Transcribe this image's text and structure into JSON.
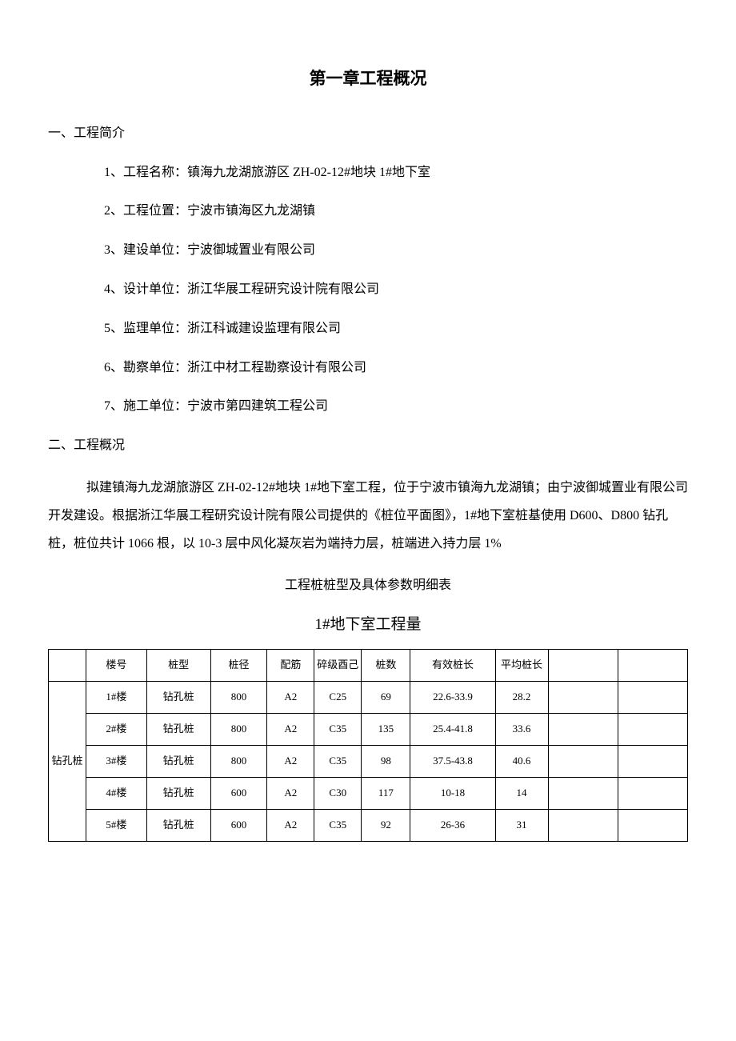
{
  "chapter_title": "第一章工程概况",
  "section1": {
    "heading": "一、工程简介",
    "items": [
      "1、工程名称：镇海九龙湖旅游区 ZH-02-12#地块 1#地下室",
      "2、工程位置：宁波市镇海区九龙湖镇",
      "3、建设单位：宁波御城置业有限公司",
      "4、设计单位：浙江华展工程研究设计院有限公司",
      "5、监理单位：浙江科诚建设监理有限公司",
      "6、勘察单位：浙江中材工程勘察设计有限公司",
      "7、施工单位：宁波市第四建筑工程公司"
    ]
  },
  "section2": {
    "heading": "二、工程概况",
    "paragraph": "拟建镇海九龙湖旅游区 ZH-02-12#地块 1#地下室工程，位于宁波市镇海九龙湖镇；由宁波御城置业有限公司开发建设。根据浙江华展工程研究设计院有限公司提供的《桩位平面图》，1#地下室桩基使用 D600、D800 钻孔桩，桩位共计 1066 根，以 10-3 层中风化凝灰岩为端持力层，桩端进入持力层 1%"
  },
  "table_caption": "工程桩桩型及具体参数明细表",
  "table_title": "1#地下室工程量",
  "table": {
    "group_label": "钻孔桩",
    "headers": [
      "楼号",
      "桩型",
      "桩径",
      "配筋",
      "碎级酉己",
      "桩数",
      "有效桩长",
      "平均桩长",
      "",
      ""
    ],
    "rows": [
      [
        "1#楼",
        "钻孔桩",
        "800",
        "A2",
        "C25",
        "69",
        "22.6-33.9",
        "28.2",
        "",
        ""
      ],
      [
        "2#楼",
        "钻孔桩",
        "800",
        "A2",
        "C35",
        "135",
        "25.4-41.8",
        "33.6",
        "",
        ""
      ],
      [
        "3#楼",
        "钻孔桩",
        "800",
        "A2",
        "C35",
        "98",
        "37.5-43.8",
        "40.6",
        "",
        ""
      ],
      [
        "4#楼",
        "钻孔桩",
        "600",
        "A2",
        "C30",
        "117",
        "10-18",
        "14",
        "",
        ""
      ],
      [
        "5#楼",
        "钻孔桩",
        "600",
        "A2",
        "C35",
        "92",
        "26-36",
        "31",
        "",
        ""
      ]
    ]
  },
  "styles": {
    "background_color": "#ffffff",
    "text_color": "#000000",
    "border_color": "#000000",
    "body_fontsize": 16,
    "title_fontsize": 21,
    "table_fontsize": 13
  }
}
